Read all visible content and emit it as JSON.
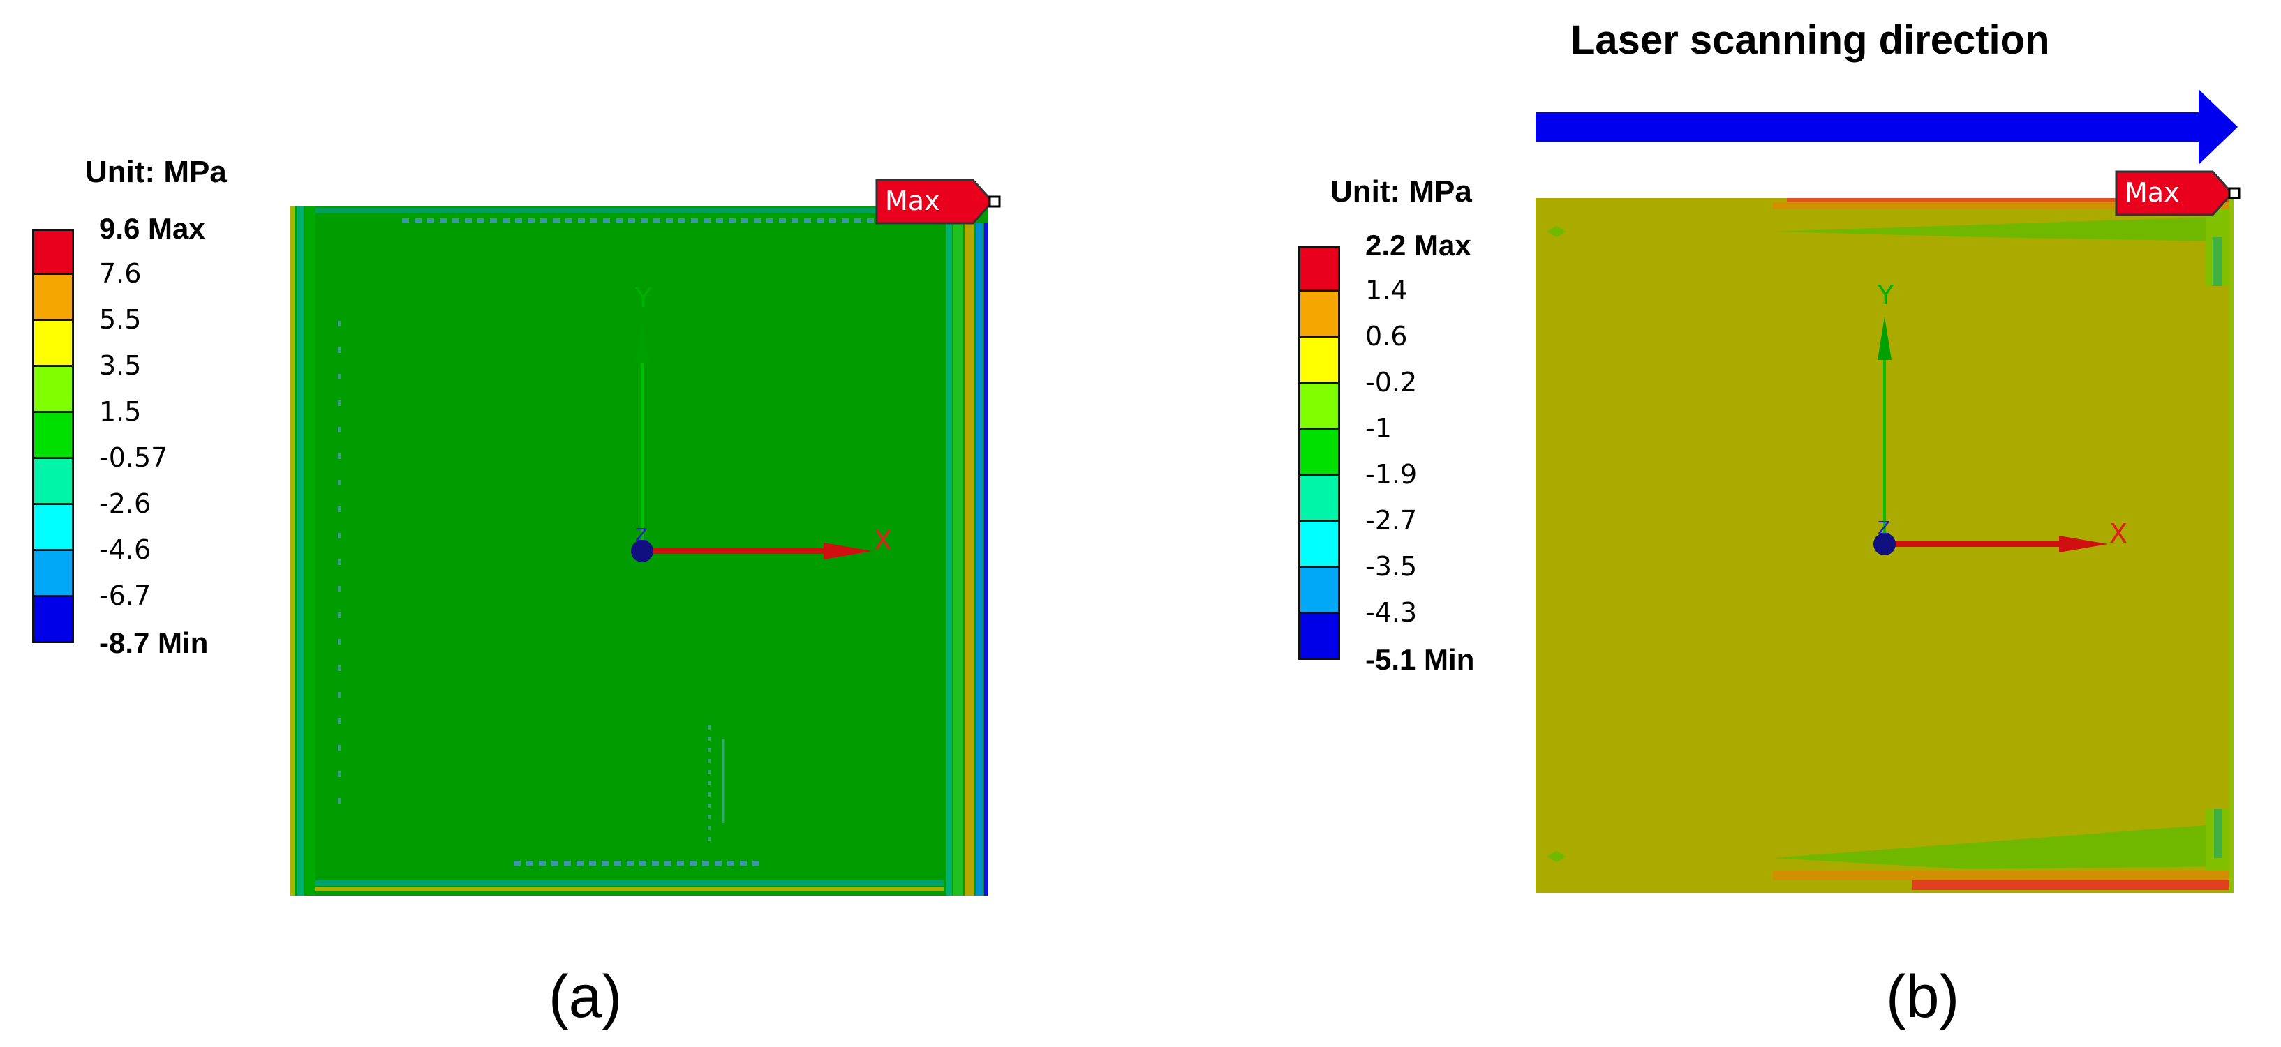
{
  "panel_a": {
    "unit_title": "Unit: MPa",
    "caption": "(a)",
    "max_tag": "Max",
    "legend": [
      {
        "label": "9.6 Max",
        "color": "#e8001c",
        "bold": true
      },
      {
        "label": "7.6",
        "color": "#f5a600",
        "bold": false
      },
      {
        "label": "5.5",
        "color": "#ffff00",
        "bold": false
      },
      {
        "label": "3.5",
        "color": "#80ff00",
        "bold": false
      },
      {
        "label": "1.5",
        "color": "#00e000",
        "bold": false
      },
      {
        "label": "-0.57",
        "color": "#00f5a8",
        "bold": false
      },
      {
        "label": "-2.6",
        "color": "#00ffff",
        "bold": false
      },
      {
        "label": "-4.6",
        "color": "#00a8f5",
        "bold": false
      },
      {
        "label": "-6.7",
        "color": "#0000e8",
        "bold": false
      },
      {
        "label": "-8.7 Min",
        "color": "",
        "bold": true
      }
    ],
    "axis_x": "X",
    "axis_y": "Y",
    "axis_z": "Z",
    "field_color": "#009c00"
  },
  "panel_b": {
    "unit_title": "Unit: MPa",
    "caption": "(b)",
    "max_tag": "Max",
    "arrow_title": "Laser scanning direction",
    "arrow_color": "#0000ee",
    "legend": [
      {
        "label": "2.2 Max",
        "color": "#e8001c",
        "bold": true
      },
      {
        "label": "1.4",
        "color": "#f5a600",
        "bold": false
      },
      {
        "label": "0.6",
        "color": "#ffff00",
        "bold": false
      },
      {
        "label": "-0.2",
        "color": "#80ff00",
        "bold": false
      },
      {
        "label": "-1",
        "color": "#00e000",
        "bold": false
      },
      {
        "label": "-1.9",
        "color": "#00f5a8",
        "bold": false
      },
      {
        "label": "-2.7",
        "color": "#00ffff",
        "bold": false
      },
      {
        "label": "-3.5",
        "color": "#00a8f5",
        "bold": false
      },
      {
        "label": "-4.3",
        "color": "#0000e8",
        "bold": false
      },
      {
        "label": "-5.1 Min",
        "color": "",
        "bold": true
      }
    ],
    "axis_x": "X",
    "axis_y": "Y",
    "axis_z": "Z",
    "field_color": "#aaaa00"
  }
}
